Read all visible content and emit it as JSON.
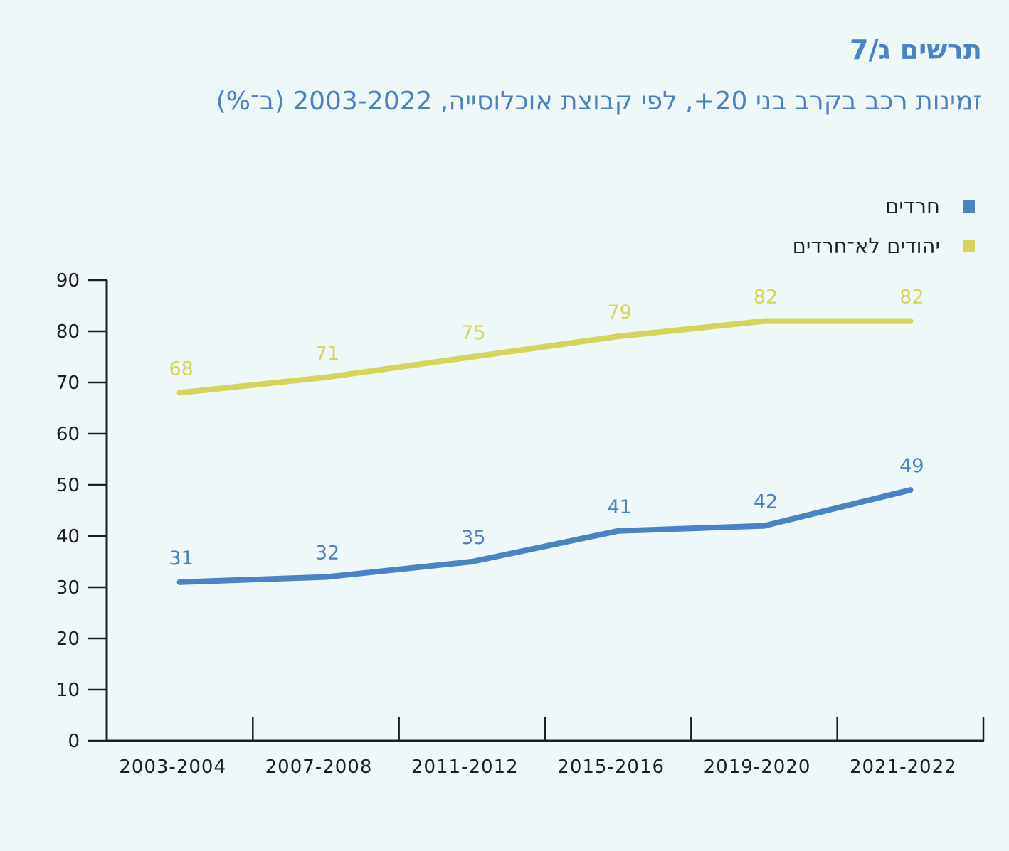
{
  "figure": {
    "label": "תרשים ג/7",
    "title": "זמינות רכב בקרב בני 20+, לפי קבוצת אוכלוסייה, 2003-2022 (ב־%)"
  },
  "colors": {
    "accent": "#4a82c3",
    "series_haredim": "#4a82c3",
    "series_non_haredim": "#d6d45a",
    "axis": "#1e1e1e",
    "background": "#eef8f8"
  },
  "chart_data": {
    "type": "line",
    "categories": [
      "2003-2004",
      "2007-2008",
      "2011-2012",
      "2015-2016",
      "2019-2020",
      "2021-2022"
    ],
    "series": [
      {
        "name": "חרדים",
        "color": "#4a82c3",
        "values": [
          31,
          32,
          35,
          41,
          42,
          49
        ]
      },
      {
        "name": "יהודים לא־חרדים",
        "color": "#d6d45a",
        "values": [
          68,
          71,
          75,
          79,
          82,
          82
        ]
      }
    ],
    "ylim": [
      0,
      90
    ],
    "yticks": [
      0,
      10,
      20,
      30,
      40,
      50,
      60,
      70,
      80,
      90
    ],
    "xlabel": "",
    "ylabel": "",
    "grid": false,
    "legend": "top-right",
    "data_labels": true
  }
}
